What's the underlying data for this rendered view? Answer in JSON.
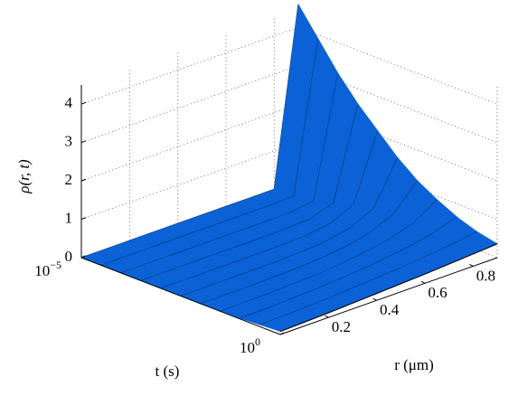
{
  "chart_data": {
    "type": "surface",
    "zlabel": "ρ(r, t)",
    "ylabel": "t (s)",
    "xlabel": "r (μm)",
    "r": [
      0,
      0.1,
      0.2,
      0.3,
      0.4,
      0.5,
      0.6,
      0.7,
      0.8,
      0.9
    ],
    "t": [
      1e-05,
      3.16e-05,
      0.0001,
      0.000316,
      0.001,
      0.00316,
      0.01,
      0.0316,
      0.1,
      0.316,
      1
    ],
    "z": [
      [
        0,
        0,
        0,
        0,
        0,
        0,
        0,
        0,
        0,
        4.6
      ],
      [
        0,
        0,
        0,
        0,
        0,
        0,
        0,
        0,
        0.02,
        3.9
      ],
      [
        0,
        0,
        0,
        0,
        0,
        0,
        0,
        0.01,
        0.1,
        3.2
      ],
      [
        0,
        0,
        0,
        0,
        0,
        0,
        0.01,
        0.05,
        0.25,
        2.6
      ],
      [
        0,
        0,
        0,
        0,
        0,
        0.01,
        0.03,
        0.12,
        0.4,
        2.1
      ],
      [
        0,
        0,
        0,
        0,
        0.01,
        0.03,
        0.08,
        0.2,
        0.5,
        1.6
      ],
      [
        0,
        0,
        0,
        0.01,
        0.03,
        0.07,
        0.14,
        0.28,
        0.55,
        1.2
      ],
      [
        0,
        0.01,
        0.02,
        0.04,
        0.07,
        0.12,
        0.2,
        0.32,
        0.52,
        0.9
      ],
      [
        0.02,
        0.03,
        0.05,
        0.08,
        0.12,
        0.17,
        0.24,
        0.33,
        0.46,
        0.65
      ],
      [
        0.05,
        0.07,
        0.09,
        0.12,
        0.16,
        0.2,
        0.25,
        0.31,
        0.38,
        0.47
      ],
      [
        0.08,
        0.1,
        0.12,
        0.15,
        0.18,
        0.21,
        0.24,
        0.28,
        0.32,
        0.36
      ]
    ],
    "xlim": [
      0,
      0.9
    ],
    "xticks": [
      0.2,
      0.4,
      0.6,
      0.8
    ],
    "ylim": [
      1e-05,
      1
    ],
    "yscale": "log",
    "yticks": [
      {
        "value": 1e-05,
        "label": "10",
        "exponent": "−5"
      },
      {
        "value": 1,
        "label": "10",
        "exponent": "0"
      }
    ],
    "zlim": [
      0,
      4.5
    ],
    "zticks": [
      0,
      1,
      2,
      3,
      4
    ],
    "grid": true,
    "color": "#0b62d6",
    "edge_color": "#000000"
  }
}
